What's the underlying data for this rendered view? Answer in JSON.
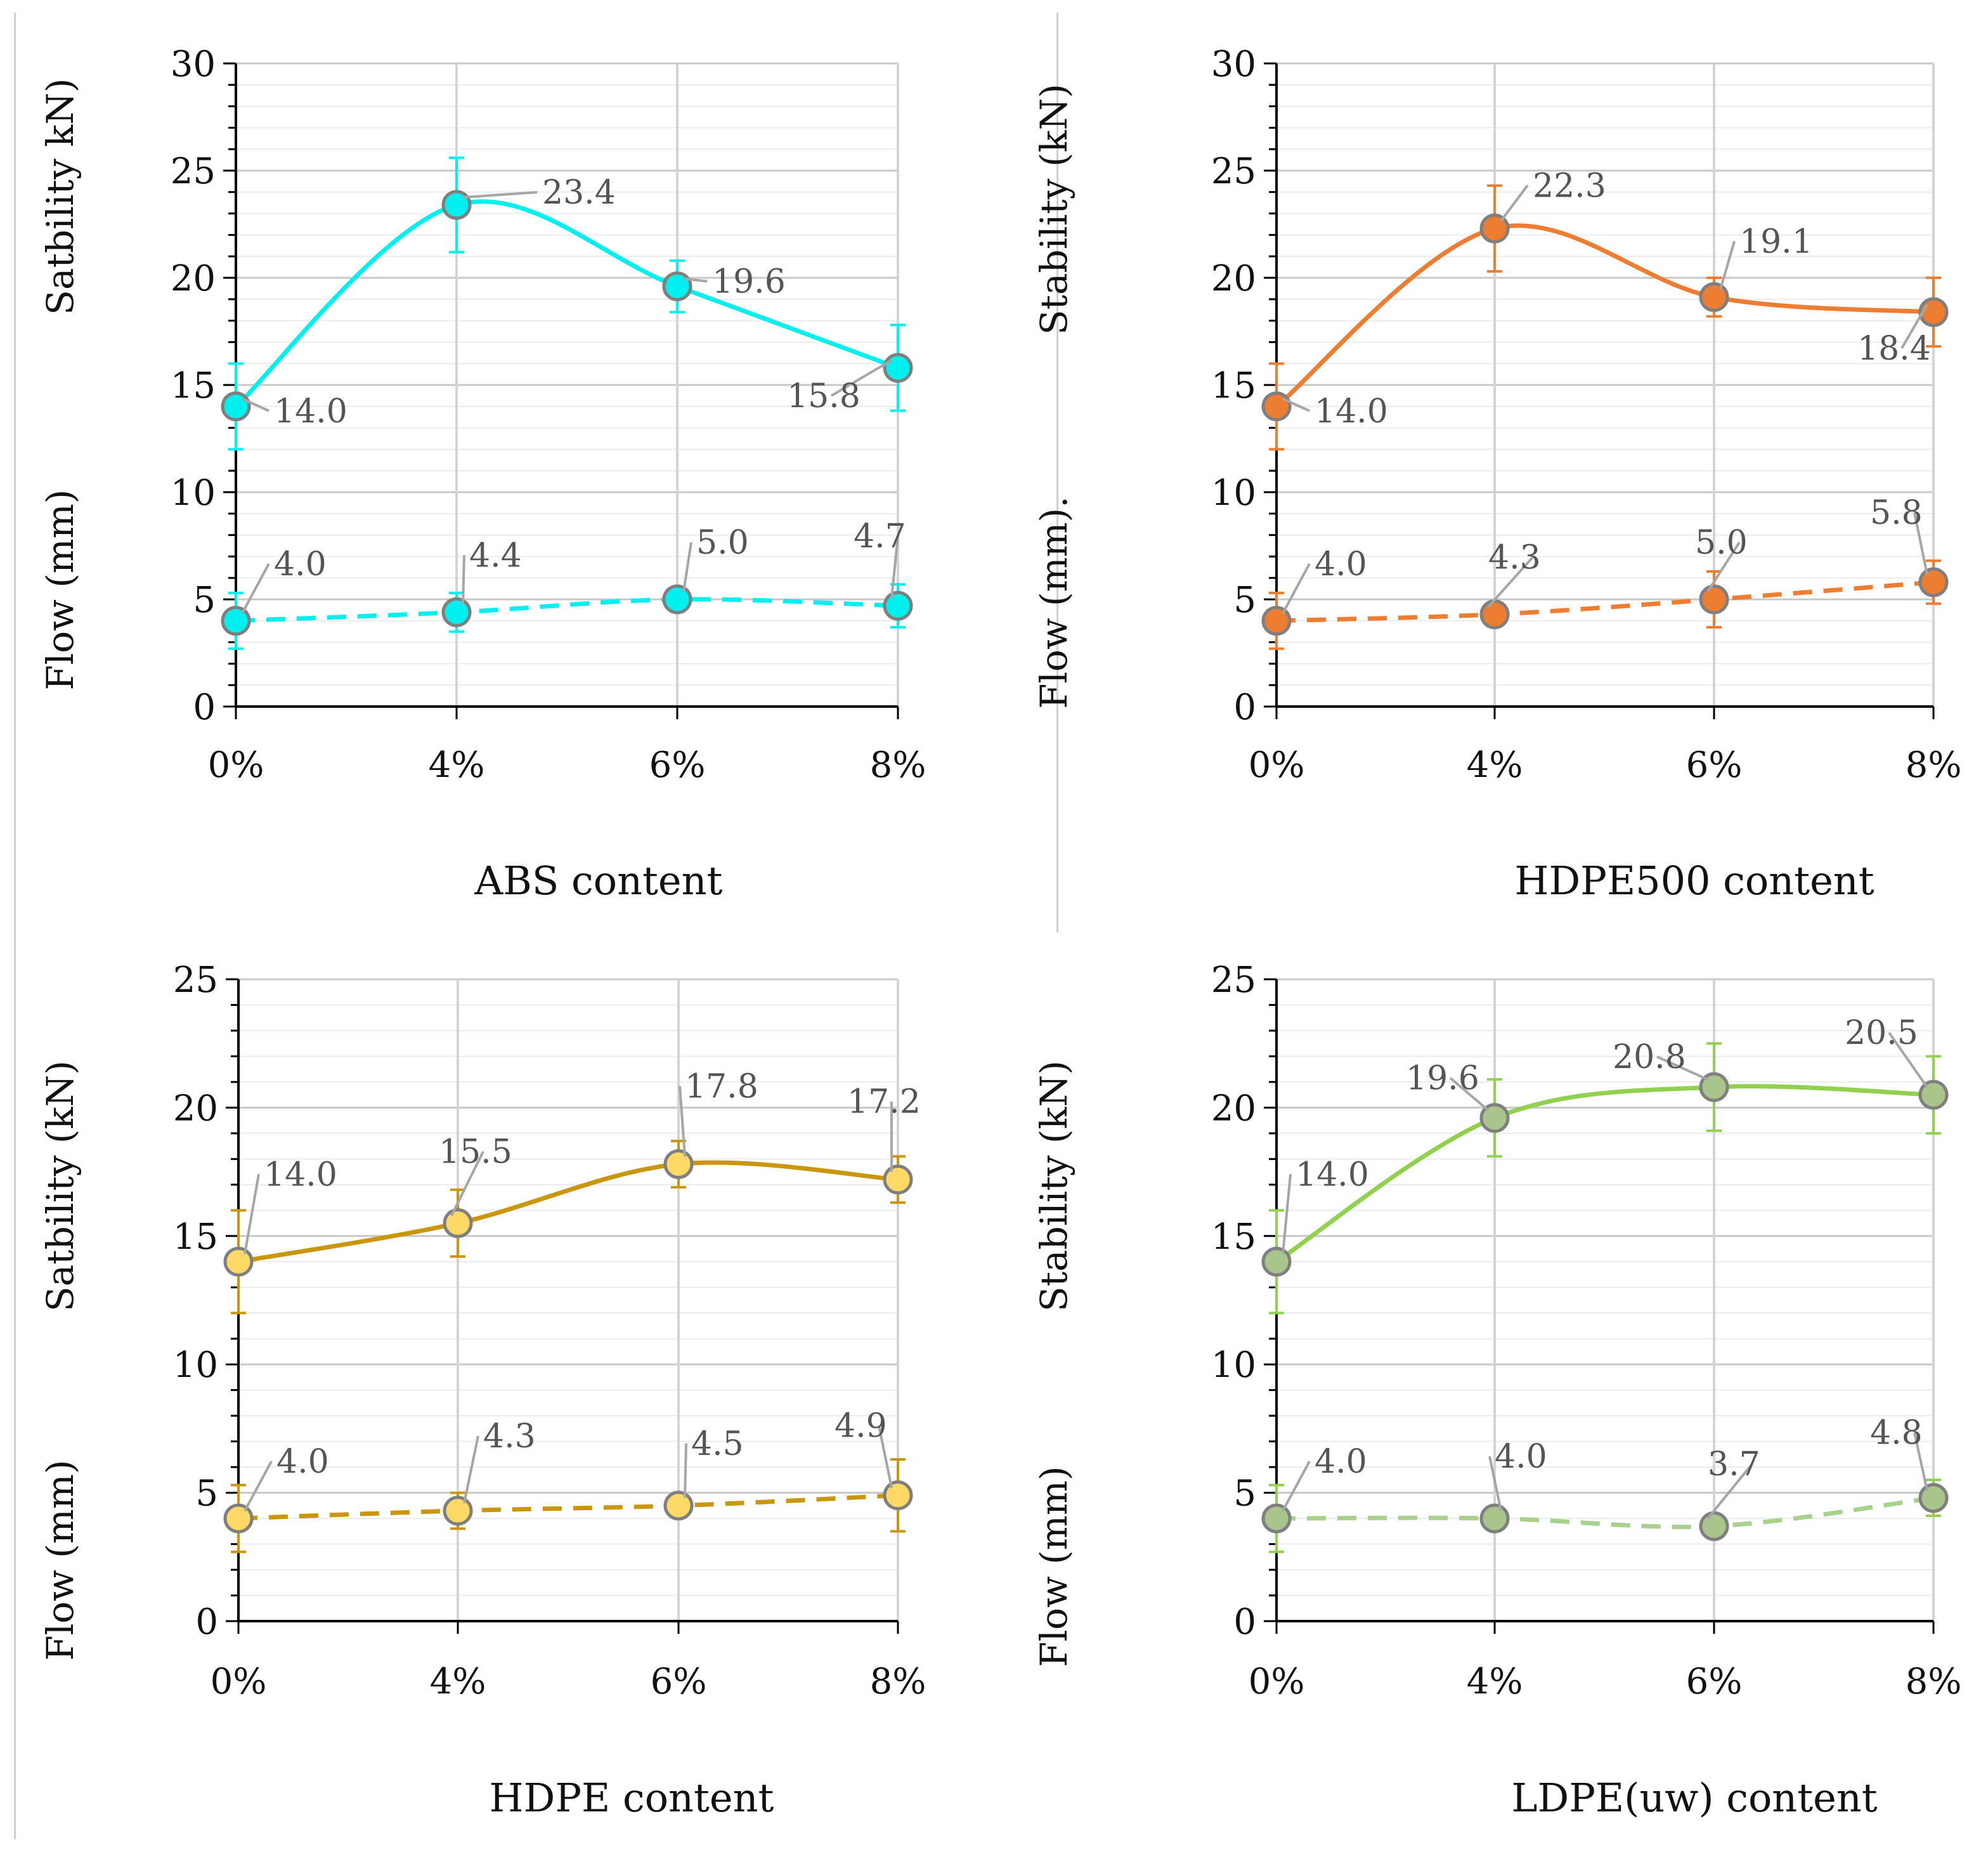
{
  "chart_data": [
    {
      "id": "abs",
      "type": "line",
      "categories": [
        "0%",
        "4%",
        "6%",
        "8%"
      ],
      "ylim": [
        0,
        30
      ],
      "ytick_labels": [
        "0",
        "5",
        "10",
        "15",
        "20",
        "25",
        "30"
      ],
      "ylabel_upper": "Satbility kN)",
      "ylabel_lower": "Flow (mm)",
      "xlabel": "ABS content",
      "color": "#00F0F0",
      "series": [
        {
          "name": "Stability",
          "style": "solid",
          "values": [
            14.0,
            23.4,
            19.6,
            15.8
          ],
          "errors": [
            2.0,
            2.2,
            1.2,
            2.0
          ],
          "labels": [
            "14.0",
            "23.4",
            "19.6",
            "15.8"
          ]
        },
        {
          "name": "Flow",
          "style": "dashed",
          "values": [
            4.0,
            4.4,
            5.0,
            4.7
          ],
          "errors": [
            1.3,
            0.9,
            0.3,
            1.0
          ],
          "labels": [
            "4.0",
            "4.4",
            "5.0",
            "4.7"
          ]
        }
      ]
    },
    {
      "id": "hdpe500",
      "type": "line",
      "categories": [
        "0%",
        "4%",
        "6%",
        "8%"
      ],
      "ylim": [
        0,
        30
      ],
      "ytick_labels": [
        "0",
        "5",
        "10",
        "15",
        "20",
        "25",
        "30"
      ],
      "ylabel_upper": "Stability (kN)",
      "ylabel_lower": "Flow (mm).",
      "xlabel": "HDPE500 content",
      "color": "#ED7D31",
      "series": [
        {
          "name": "Stability",
          "style": "solid",
          "values": [
            14.0,
            22.3,
            19.1,
            18.4
          ],
          "errors": [
            2.0,
            2.0,
            0.9,
            1.6
          ],
          "labels": [
            "14.0",
            "22.3",
            "19.1",
            "18.4"
          ]
        },
        {
          "name": "Flow",
          "style": "dashed",
          "values": [
            4.0,
            4.3,
            5.0,
            5.8
          ],
          "errors": [
            1.3,
            0.5,
            1.3,
            1.0
          ],
          "labels": [
            "4.0",
            "4.3",
            "5.0",
            "5.8"
          ]
        }
      ]
    },
    {
      "id": "hdpe",
      "type": "line",
      "categories": [
        "0%",
        "4%",
        "6%",
        "8%"
      ],
      "ylim": [
        0,
        25
      ],
      "ytick_labels": [
        "0",
        "5",
        "10",
        "15",
        "20",
        "25"
      ],
      "ylabel_upper": "Satbility (kN)",
      "ylabel_lower": "Flow (mm)",
      "xlabel": "HDPE content",
      "color": "#C9960C",
      "fill": "#FFD966",
      "series": [
        {
          "name": "Stability",
          "style": "solid",
          "values": [
            14.0,
            15.5,
            17.8,
            17.2
          ],
          "errors": [
            2.0,
            1.3,
            0.9,
            0.9
          ],
          "labels": [
            "14.0",
            "15.5",
            "17.8",
            "17.2"
          ]
        },
        {
          "name": "Flow",
          "style": "dashed",
          "values": [
            4.0,
            4.3,
            4.5,
            4.9
          ],
          "errors": [
            1.3,
            0.7,
            0.3,
            1.4
          ],
          "labels": [
            "4.0",
            "4.3",
            "4.5",
            "4.9"
          ]
        }
      ]
    },
    {
      "id": "ldpe",
      "type": "line",
      "categories": [
        "0%",
        "4%",
        "6%",
        "8%"
      ],
      "ylim": [
        0,
        25
      ],
      "ytick_labels": [
        "0",
        "5",
        "10",
        "15",
        "20",
        "25"
      ],
      "ylabel_upper": "Stability (kN)",
      "ylabel_lower": "Flow (mm)",
      "xlabel": "LDPE(uw) content",
      "color": "#92D050",
      "line_color_lower": "#A9D18E",
      "fill": "#A9C58C",
      "series": [
        {
          "name": "Stability",
          "style": "solid",
          "values": [
            14.0,
            19.6,
            20.8,
            20.5
          ],
          "errors": [
            2.0,
            1.5,
            1.7,
            1.5
          ],
          "labels": [
            "14.0",
            "19.6",
            "20.8",
            "20.5"
          ]
        },
        {
          "name": "Flow",
          "style": "dashed",
          "values": [
            4.0,
            4.0,
            3.7,
            4.8
          ],
          "errors": [
            1.3,
            0.3,
            0.2,
            0.7
          ],
          "labels": [
            "4.0",
            "4.0",
            "3.7",
            "4.8"
          ]
        }
      ]
    }
  ]
}
